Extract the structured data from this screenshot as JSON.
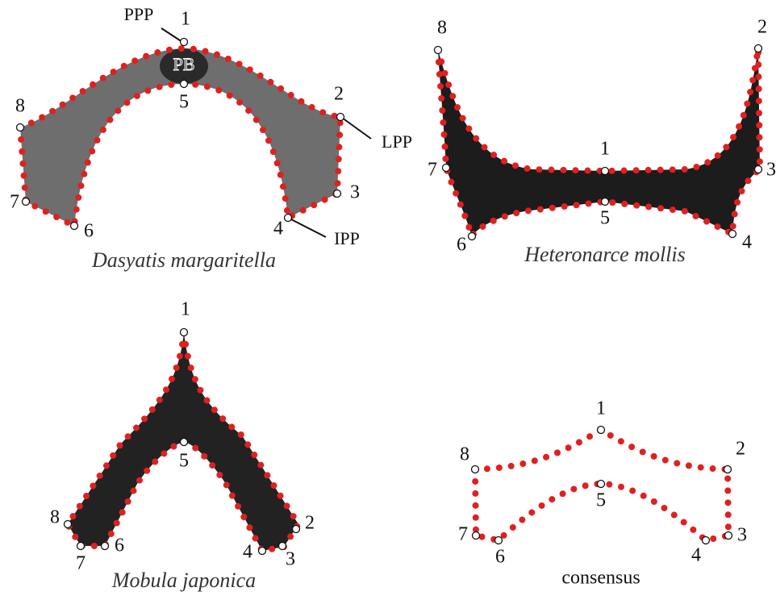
{
  "panels": [
    {
      "species": "Dasyatis margaritella",
      "landmarks": [
        1,
        2,
        3,
        4,
        5,
        6,
        7,
        8
      ]
    },
    {
      "species": "Heteronarce mollis",
      "landmarks": [
        1,
        2,
        3,
        4,
        5,
        6,
        7,
        8
      ]
    },
    {
      "species": "Mobula japonica",
      "landmarks": [
        1,
        2,
        3,
        4,
        5,
        6,
        7,
        8
      ]
    },
    {
      "species": "consensus",
      "landmarks": [
        1,
        2,
        3,
        4,
        5,
        6,
        7,
        8
      ]
    }
  ],
  "annotations": {
    "ppp": "PPP",
    "pb": "PB",
    "lpp": "LPP",
    "ipp": "IPP"
  }
}
